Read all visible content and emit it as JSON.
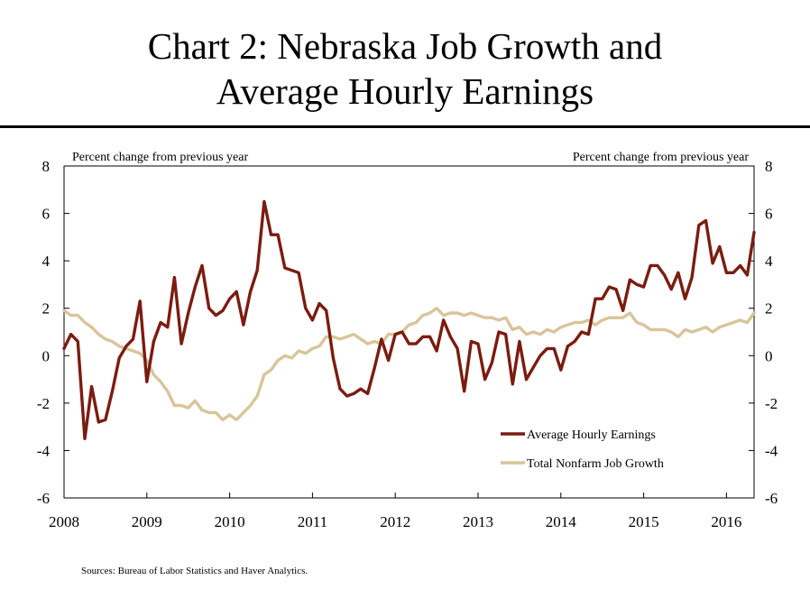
{
  "page": {
    "title_line1": "Chart 2: Nebraska Job Growth and",
    "title_line2": "Average Hourly Earnings",
    "source": "Sources: Bureau of Labor Statistics and Haver Analytics."
  },
  "chart_data": {
    "type": "line",
    "title": "Chart 2: Nebraska Job Growth and Average Hourly Earnings",
    "ylabel_left": "Percent change from previous year",
    "ylabel_right": "Percent change from previous year",
    "ylim": [
      -6,
      8
    ],
    "y_ticks": [
      -6,
      -4,
      -2,
      0,
      2,
      4,
      6,
      8
    ],
    "x_ticks": [
      "2008",
      "2009",
      "2010",
      "2011",
      "2012",
      "2013",
      "2014",
      "2015",
      "2016"
    ],
    "x_range": [
      "2008-01",
      "2016-05"
    ],
    "grid": false,
    "legend_position": "lower-right",
    "frequency": "monthly",
    "series": [
      {
        "name": "Average Hourly Earnings",
        "color": "#7b1c10",
        "start": "2008-01",
        "values": [
          0.3,
          0.9,
          0.6,
          -3.5,
          -1.3,
          -2.8,
          -2.7,
          -1.5,
          -0.1,
          0.4,
          0.7,
          2.3,
          -1.1,
          0.6,
          1.4,
          1.2,
          3.3,
          0.5,
          1.8,
          2.9,
          3.8,
          2.0,
          1.7,
          1.9,
          2.4,
          2.7,
          1.3,
          2.7,
          3.6,
          6.5,
          5.1,
          5.1,
          3.7,
          3.6,
          3.5,
          2.0,
          1.5,
          2.2,
          1.9,
          -0.1,
          -1.4,
          -1.7,
          -1.6,
          -1.4,
          -1.6,
          -0.5,
          0.7,
          -0.2,
          0.9,
          1.0,
          0.5,
          0.5,
          0.8,
          0.8,
          0.2,
          1.5,
          0.8,
          0.3,
          -1.5,
          0.6,
          0.5,
          -1.0,
          -0.3,
          1.0,
          0.9,
          -1.2,
          0.6,
          -1.0,
          -0.5,
          0.0,
          0.3,
          0.3,
          -0.6,
          0.4,
          0.6,
          1.0,
          0.9,
          2.4,
          2.4,
          2.9,
          2.8,
          1.9,
          3.2,
          3.0,
          2.9,
          3.8,
          3.8,
          3.4,
          2.8,
          3.5,
          2.4,
          3.3,
          5.5,
          5.7,
          3.9,
          4.6,
          3.5,
          3.5,
          3.8,
          3.4,
          5.2
        ]
      },
      {
        "name": "Total Nonfarm Job Growth",
        "color": "#d8c59a",
        "start": "2008-01",
        "values": [
          1.9,
          1.7,
          1.7,
          1.4,
          1.2,
          0.9,
          0.7,
          0.6,
          0.4,
          0.3,
          0.2,
          0.1,
          -0.2,
          -0.8,
          -1.1,
          -1.5,
          -2.1,
          -2.1,
          -2.2,
          -1.9,
          -2.3,
          -2.4,
          -2.4,
          -2.7,
          -2.5,
          -2.7,
          -2.4,
          -2.1,
          -1.7,
          -0.8,
          -0.6,
          -0.2,
          0.0,
          -0.1,
          0.2,
          0.1,
          0.3,
          0.4,
          0.8,
          0.8,
          0.7,
          0.8,
          0.9,
          0.7,
          0.5,
          0.6,
          0.5,
          0.9,
          0.9,
          1.0,
          1.3,
          1.4,
          1.7,
          1.8,
          2.0,
          1.7,
          1.8,
          1.8,
          1.7,
          1.8,
          1.7,
          1.6,
          1.6,
          1.5,
          1.6,
          1.1,
          1.2,
          0.9,
          1.0,
          0.9,
          1.1,
          1.0,
          1.2,
          1.3,
          1.4,
          1.4,
          1.5,
          1.3,
          1.5,
          1.6,
          1.6,
          1.6,
          1.8,
          1.4,
          1.3,
          1.1,
          1.1,
          1.1,
          1.0,
          0.8,
          1.1,
          1.0,
          1.1,
          1.2,
          1.0,
          1.2,
          1.3,
          1.4,
          1.5,
          1.4,
          1.8
        ]
      }
    ]
  }
}
